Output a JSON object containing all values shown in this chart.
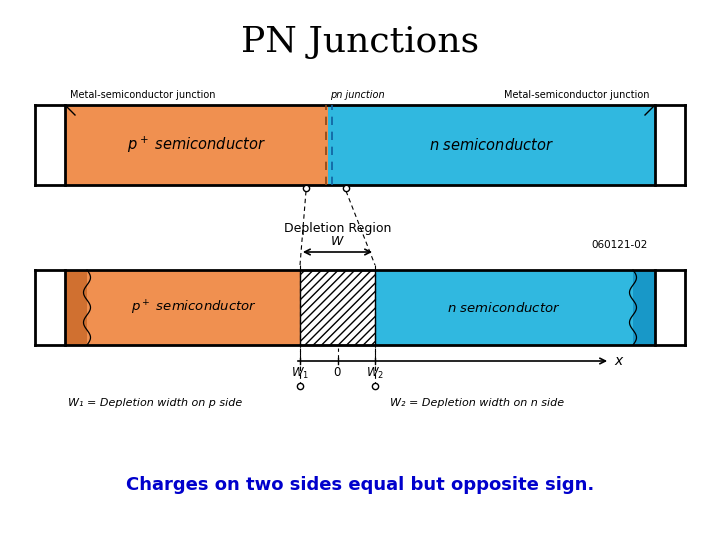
{
  "title": "PN Junctions",
  "title_fontsize": 26,
  "subtitle": "Charges on two sides equal but opposite sign.",
  "subtitle_color": "#0000CC",
  "subtitle_fontsize": 13,
  "bg_color": "#FFFFFF",
  "orange_color": "#F09050",
  "blue_color": "#30B8E0",
  "label_metal_semi": "Metal-semiconductor junction",
  "label_pn": "pn junction",
  "label_depletion": "Depletion Region",
  "label_W1_def": "W₁ = Depletion width on p side",
  "label_W2_def": "W₂ = Depletion width on n side",
  "code_label": "060121-02"
}
